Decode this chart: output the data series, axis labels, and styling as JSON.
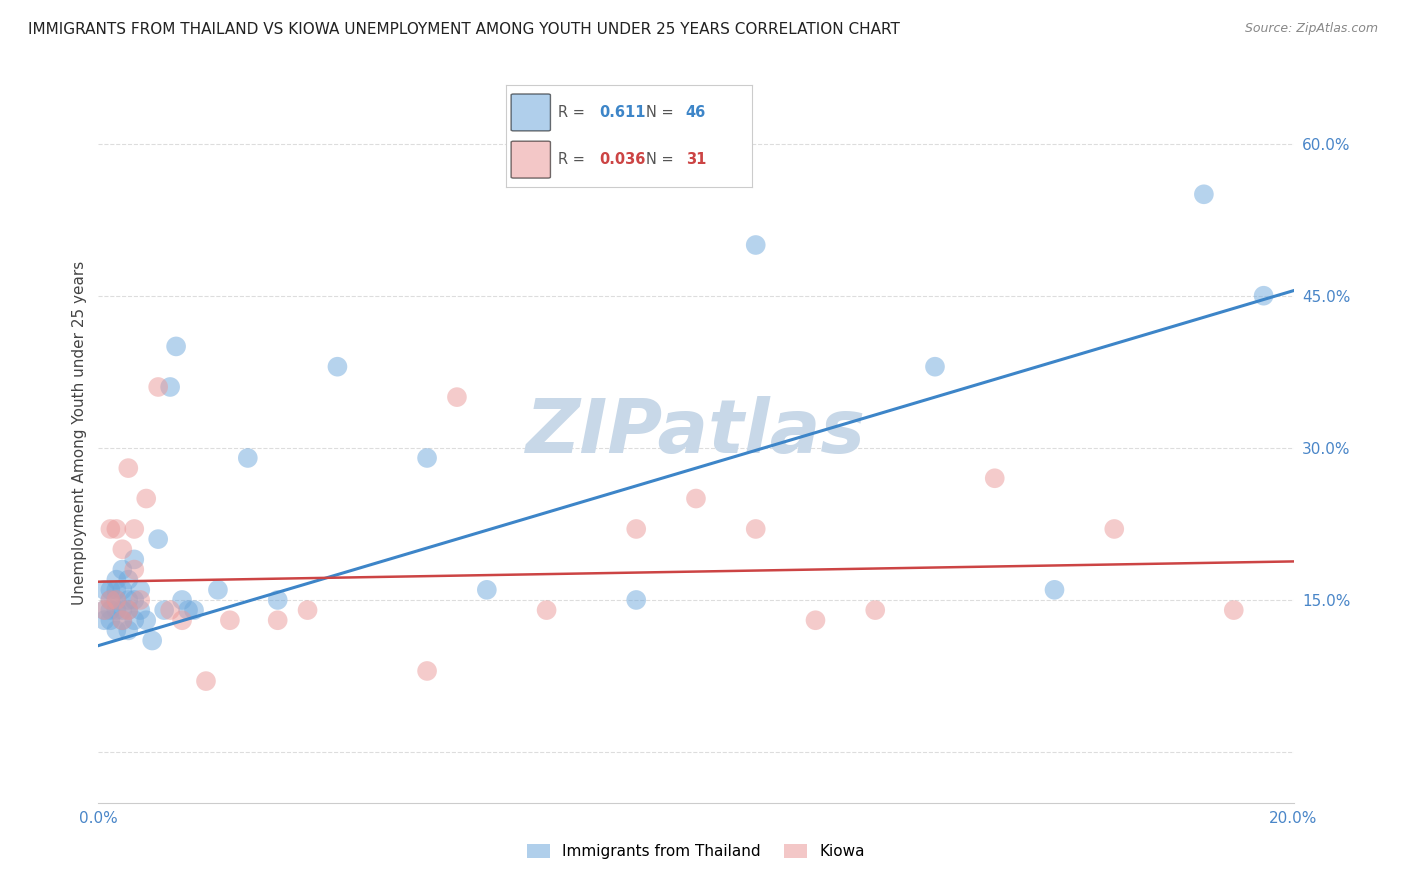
{
  "title": "IMMIGRANTS FROM THAILAND VS KIOWA UNEMPLOYMENT AMONG YOUTH UNDER 25 YEARS CORRELATION CHART",
  "source": "Source: ZipAtlas.com",
  "ylabel": "Unemployment Among Youth under 25 years",
  "xlim": [
    0.0,
    0.2
  ],
  "ylim": [
    -0.05,
    0.68
  ],
  "yticks": [
    0.0,
    0.15,
    0.3,
    0.45,
    0.6
  ],
  "ytick_labels": [
    "",
    "15.0%",
    "30.0%",
    "45.0%",
    "60.0%"
  ],
  "xticks": [
    0.0,
    0.05,
    0.1,
    0.15,
    0.2
  ],
  "xtick_labels": [
    "0.0%",
    "",
    "",
    "",
    "20.0%"
  ],
  "blue_scatter_x": [
    0.001,
    0.001,
    0.001,
    0.002,
    0.002,
    0.002,
    0.002,
    0.003,
    0.003,
    0.003,
    0.003,
    0.003,
    0.004,
    0.004,
    0.004,
    0.004,
    0.005,
    0.005,
    0.005,
    0.005,
    0.006,
    0.006,
    0.006,
    0.007,
    0.007,
    0.008,
    0.009,
    0.01,
    0.011,
    0.012,
    0.013,
    0.014,
    0.015,
    0.016,
    0.02,
    0.025,
    0.03,
    0.04,
    0.055,
    0.065,
    0.09,
    0.11,
    0.14,
    0.16,
    0.185,
    0.195
  ],
  "blue_scatter_y": [
    0.13,
    0.14,
    0.16,
    0.13,
    0.14,
    0.15,
    0.16,
    0.12,
    0.14,
    0.15,
    0.16,
    0.17,
    0.13,
    0.14,
    0.16,
    0.18,
    0.12,
    0.14,
    0.15,
    0.17,
    0.13,
    0.15,
    0.19,
    0.14,
    0.16,
    0.13,
    0.11,
    0.21,
    0.14,
    0.36,
    0.4,
    0.15,
    0.14,
    0.14,
    0.16,
    0.29,
    0.15,
    0.38,
    0.29,
    0.16,
    0.15,
    0.5,
    0.38,
    0.16,
    0.55,
    0.45
  ],
  "pink_scatter_x": [
    0.001,
    0.002,
    0.002,
    0.003,
    0.003,
    0.004,
    0.004,
    0.005,
    0.005,
    0.006,
    0.006,
    0.007,
    0.008,
    0.01,
    0.012,
    0.014,
    0.018,
    0.022,
    0.03,
    0.035,
    0.055,
    0.06,
    0.075,
    0.09,
    0.1,
    0.11,
    0.12,
    0.13,
    0.15,
    0.17,
    0.19
  ],
  "pink_scatter_y": [
    0.14,
    0.15,
    0.22,
    0.15,
    0.22,
    0.13,
    0.2,
    0.14,
    0.28,
    0.18,
    0.22,
    0.15,
    0.25,
    0.36,
    0.14,
    0.13,
    0.07,
    0.13,
    0.13,
    0.14,
    0.08,
    0.35,
    0.14,
    0.22,
    0.25,
    0.22,
    0.13,
    0.14,
    0.27,
    0.22,
    0.14
  ],
  "blue_line_x": [
    0.0,
    0.2
  ],
  "blue_line_y": [
    0.105,
    0.455
  ],
  "pink_line_x": [
    0.0,
    0.2
  ],
  "pink_line_y": [
    0.168,
    0.188
  ],
  "blue_color": "#6fa8dc",
  "pink_color": "#ea9999",
  "blue_line_color": "#3d85c8",
  "pink_line_color": "#cc4444",
  "legend_blue_R": "0.611",
  "legend_blue_N": "46",
  "legend_pink_R": "0.036",
  "legend_pink_N": "31",
  "watermark": "ZIPatlas",
  "watermark_color": "#c8d8e8",
  "legend_labels": [
    "Immigrants from Thailand",
    "Kiowa"
  ],
  "background_color": "#ffffff",
  "grid_color": "#dddddd",
  "tick_color": "#4a86c8",
  "title_fontsize": 11,
  "axis_label_fontsize": 11,
  "tick_fontsize": 11
}
